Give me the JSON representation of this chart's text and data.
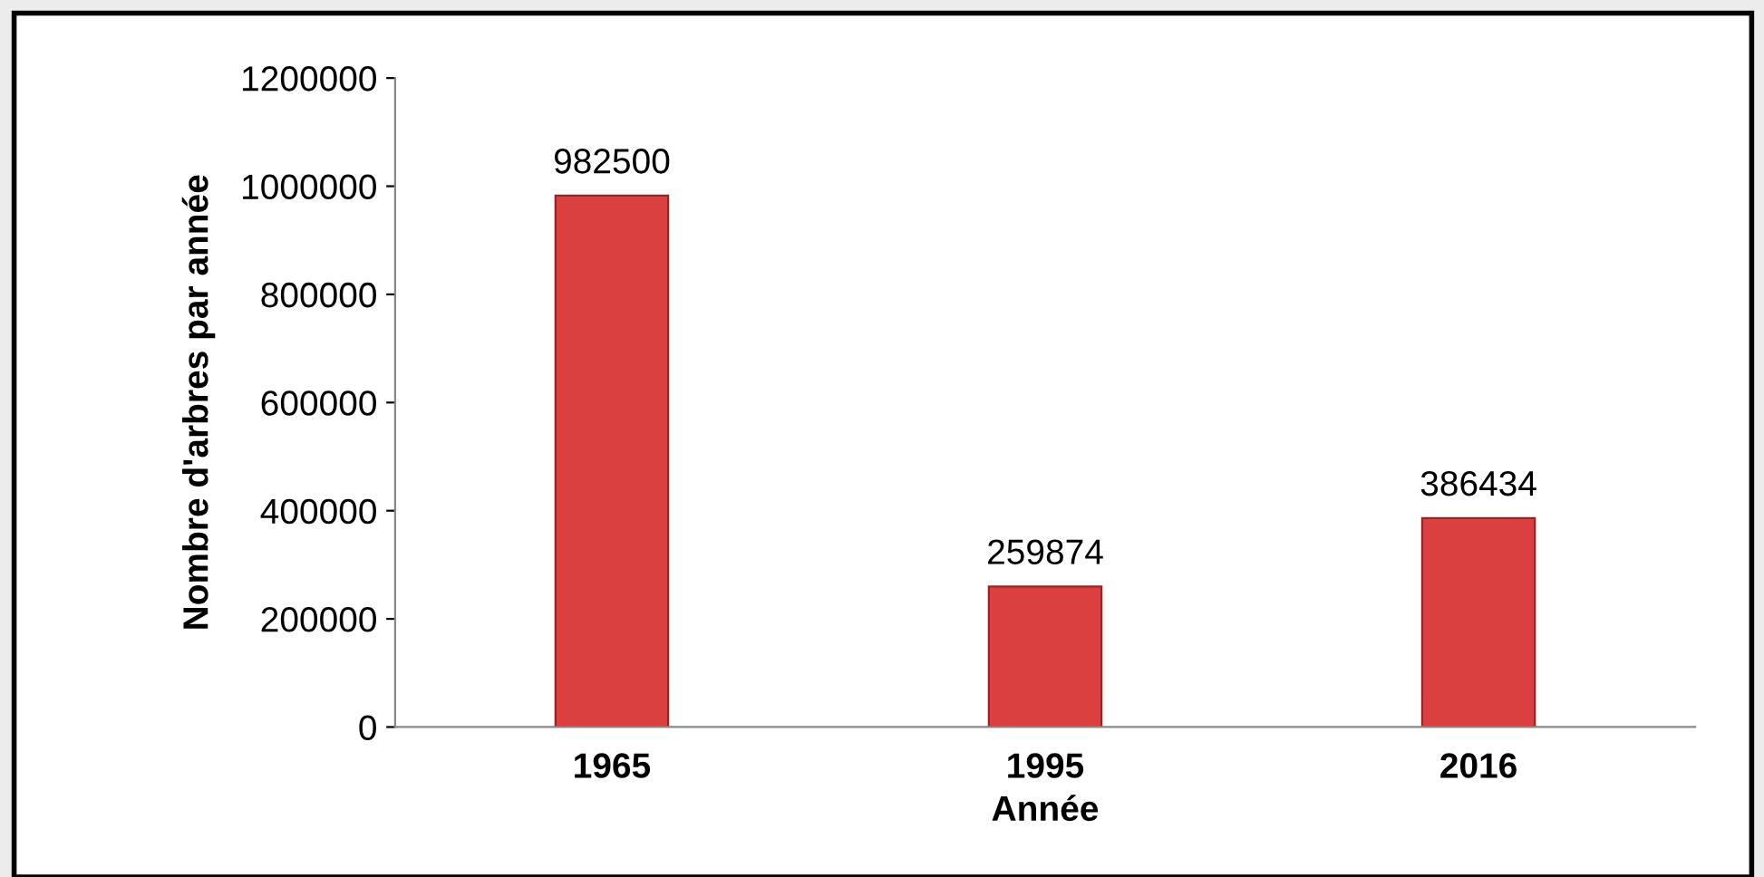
{
  "chart_data": {
    "type": "bar",
    "categories": [
      "1965",
      "1995",
      "2016"
    ],
    "values": [
      982500,
      259874,
      386434
    ],
    "color": "#d9403f",
    "xlabel": "Année",
    "ylabel": "Nombre d'arbres par année",
    "ylim": [
      0,
      1200000
    ],
    "yticks": [
      0,
      200000,
      400000,
      600000,
      800000,
      1000000,
      1200000
    ],
    "data_labels": true,
    "grid": false,
    "legend": false
  }
}
